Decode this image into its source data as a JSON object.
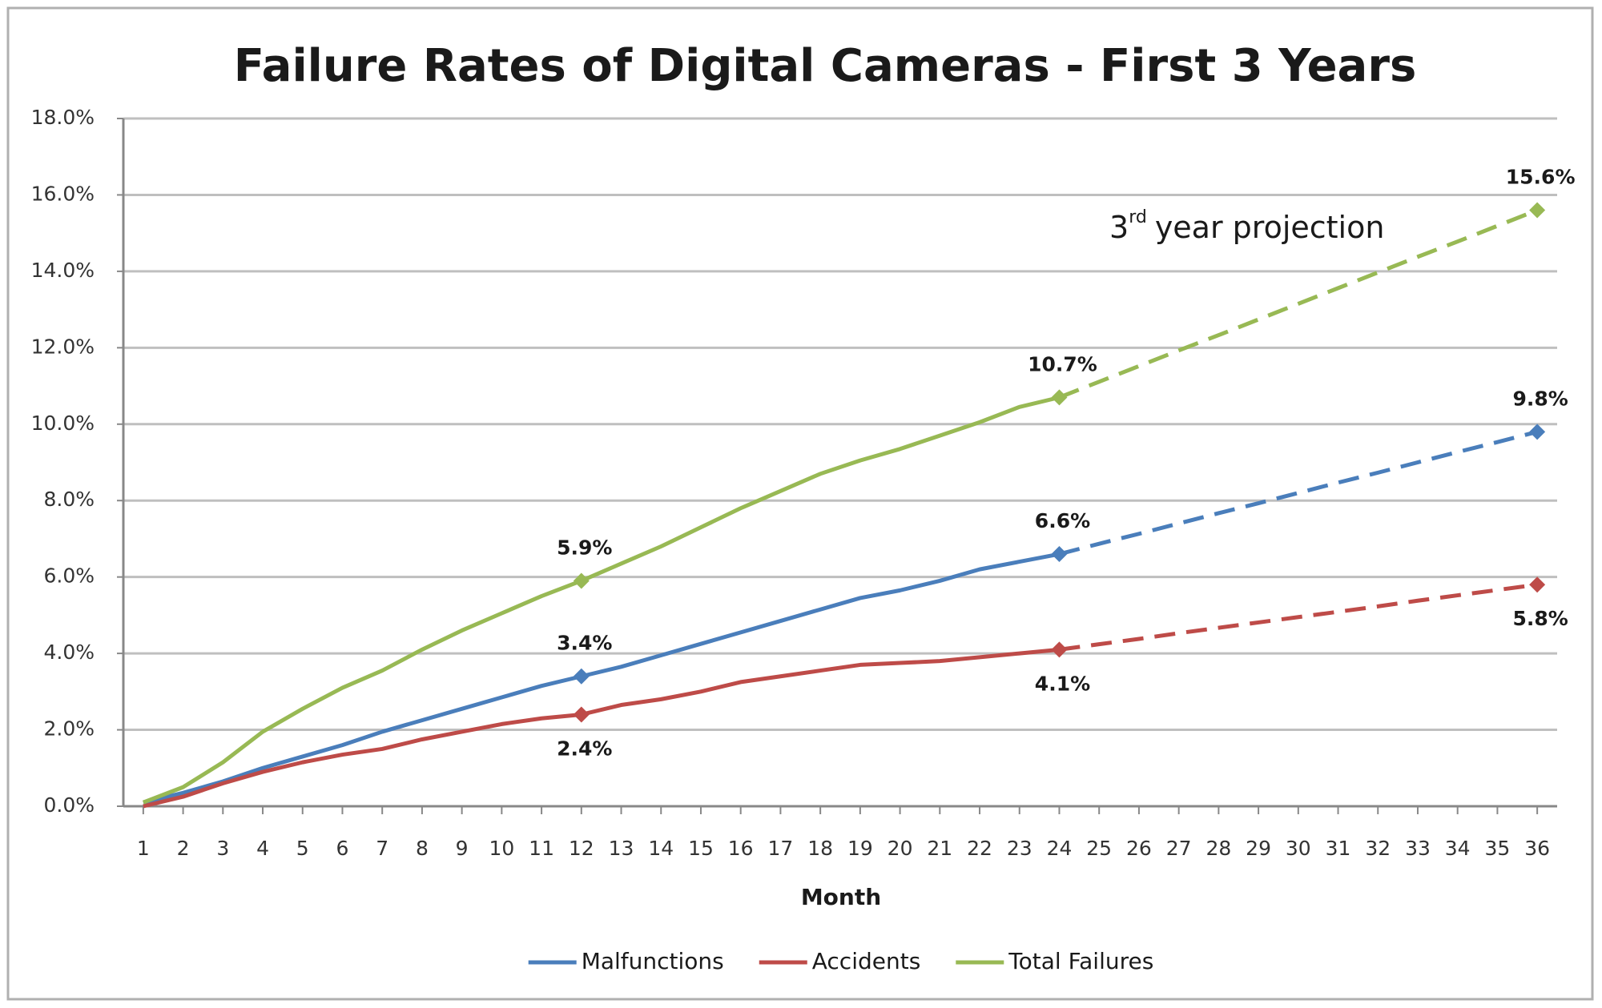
{
  "chart_data": {
    "type": "line",
    "title": "Failure Rates of Digital Cameras - First 3 Years",
    "x_label": "Month",
    "annotation": {
      "base": "3",
      "sup": "rd",
      "text": "year projection"
    },
    "x": [
      1,
      2,
      3,
      4,
      5,
      6,
      7,
      8,
      9,
      10,
      11,
      12,
      13,
      14,
      15,
      16,
      17,
      18,
      19,
      20,
      21,
      22,
      23,
      24,
      25,
      26,
      27,
      28,
      29,
      30,
      31,
      32,
      33,
      34,
      35,
      36
    ],
    "xlim": [
      0.5,
      36.5
    ],
    "xticks": [
      1,
      2,
      3,
      4,
      5,
      6,
      7,
      8,
      9,
      10,
      11,
      12,
      13,
      14,
      15,
      16,
      17,
      18,
      19,
      20,
      21,
      22,
      23,
      24,
      25,
      26,
      27,
      28,
      29,
      30,
      31,
      32,
      33,
      34,
      35,
      36
    ],
    "ylim": [
      0,
      18
    ],
    "yticks": [
      {
        "value": 0,
        "label": "0.0%"
      },
      {
        "value": 2,
        "label": "2.0%"
      },
      {
        "value": 4,
        "label": "4.0%"
      },
      {
        "value": 6,
        "label": "6.0%"
      },
      {
        "value": 8,
        "label": "8.0%"
      },
      {
        "value": 10,
        "label": "10.0%"
      },
      {
        "value": 12,
        "label": "12.0%"
      },
      {
        "value": 14,
        "label": "14.0%"
      },
      {
        "value": 16,
        "label": "16.0%"
      },
      {
        "value": 18,
        "label": "18.0%"
      }
    ],
    "grid": true,
    "legend": "bottom",
    "projection_from": 24,
    "series": [
      {
        "name": "Malfunctions",
        "color": "#4a7ebb",
        "label_position": "above",
        "values": [
          0.1,
          0.35,
          0.65,
          1.0,
          1.3,
          1.6,
          1.95,
          2.25,
          2.55,
          2.85,
          3.15,
          3.4,
          3.65,
          3.95,
          4.25,
          4.55,
          4.85,
          5.15,
          5.45,
          5.65,
          5.9,
          6.2,
          6.4,
          6.6,
          6.87,
          7.13,
          7.4,
          7.67,
          7.93,
          8.2,
          8.47,
          8.73,
          9.0,
          9.27,
          9.53,
          9.8
        ],
        "value_labels": [
          null,
          null,
          null,
          null,
          null,
          null,
          null,
          null,
          null,
          null,
          null,
          "3.4%",
          null,
          null,
          null,
          null,
          null,
          null,
          null,
          null,
          null,
          null,
          null,
          "6.6%",
          null,
          null,
          null,
          null,
          null,
          null,
          null,
          null,
          null,
          null,
          null,
          "9.8%"
        ]
      },
      {
        "name": "Accidents",
        "color": "#be4b48",
        "label_position": "below",
        "values": [
          0.0,
          0.25,
          0.6,
          0.9,
          1.15,
          1.35,
          1.5,
          1.75,
          1.95,
          2.15,
          2.3,
          2.4,
          2.65,
          2.8,
          3.0,
          3.25,
          3.4,
          3.55,
          3.7,
          3.75,
          3.8,
          3.9,
          4.0,
          4.1,
          4.24,
          4.38,
          4.53,
          4.67,
          4.81,
          4.95,
          5.09,
          5.23,
          5.38,
          5.52,
          5.66,
          5.8
        ],
        "value_labels": [
          null,
          null,
          null,
          null,
          null,
          null,
          null,
          null,
          null,
          null,
          null,
          "2.4%",
          null,
          null,
          null,
          null,
          null,
          null,
          null,
          null,
          null,
          null,
          null,
          "4.1%",
          null,
          null,
          null,
          null,
          null,
          null,
          null,
          null,
          null,
          null,
          null,
          "5.8%"
        ]
      },
      {
        "name": "Total Failures",
        "color": "#98b954",
        "label_position": "above",
        "values": [
          0.1,
          0.5,
          1.15,
          1.95,
          2.55,
          3.1,
          3.55,
          4.1,
          4.6,
          5.05,
          5.5,
          5.9,
          6.35,
          6.8,
          7.3,
          7.8,
          8.25,
          8.7,
          9.05,
          9.35,
          9.7,
          10.05,
          10.45,
          10.7,
          11.11,
          11.52,
          11.93,
          12.33,
          12.74,
          13.15,
          13.56,
          13.97,
          14.38,
          14.78,
          15.19,
          15.6
        ],
        "value_labels": [
          null,
          null,
          null,
          null,
          null,
          null,
          null,
          null,
          null,
          null,
          null,
          "5.9%",
          null,
          null,
          null,
          null,
          null,
          null,
          null,
          null,
          null,
          null,
          null,
          "10.7%",
          null,
          null,
          null,
          null,
          null,
          null,
          null,
          null,
          null,
          null,
          null,
          "15.6%"
        ]
      }
    ]
  }
}
